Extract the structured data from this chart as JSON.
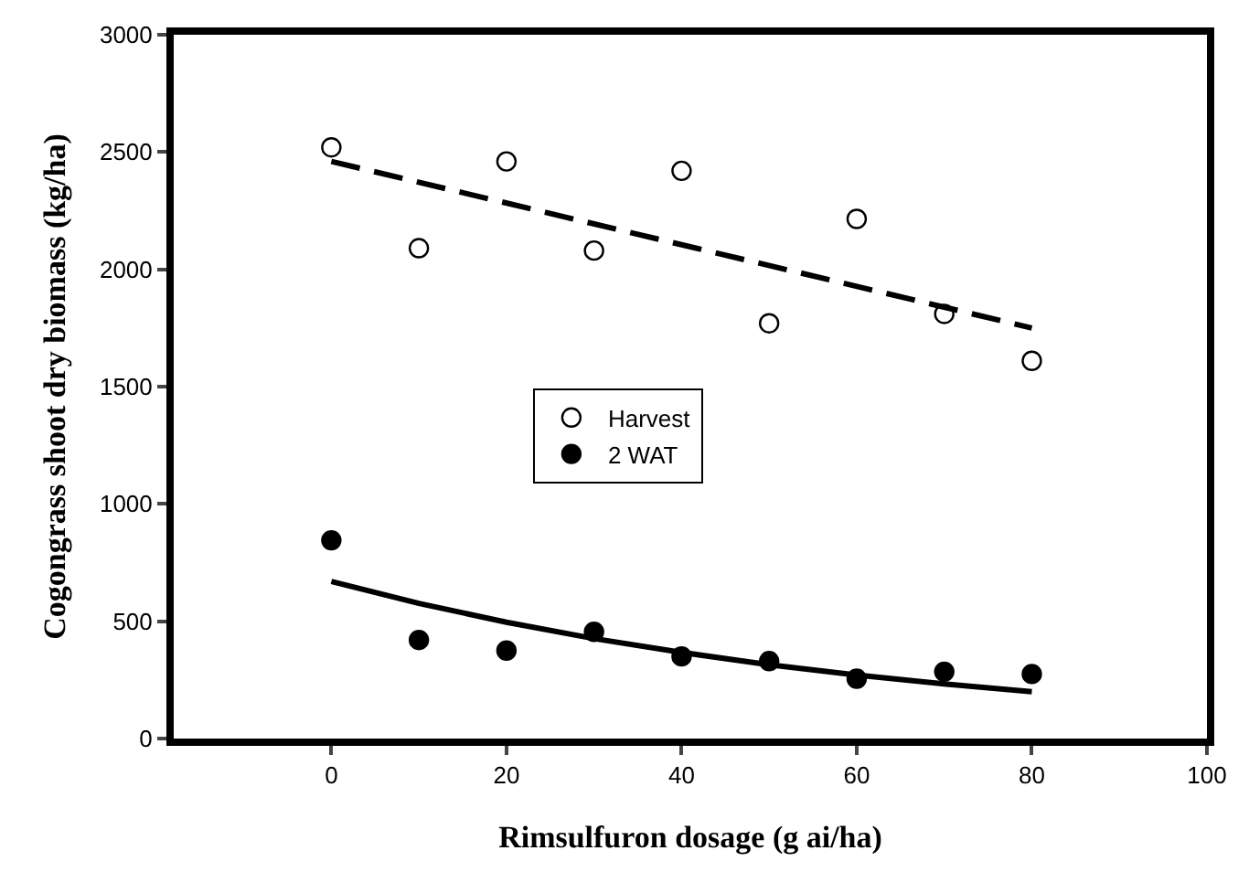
{
  "chart_data": {
    "type": "scatter",
    "xlabel": "Rimsulfuron dosage (g ai/ha)",
    "ylabel": "Cogongrass shoot dry biomass (kg/ha)",
    "x": [
      0,
      10,
      20,
      30,
      40,
      50,
      60,
      70,
      80
    ],
    "series": [
      {
        "name": "Harvest",
        "marker": "circle",
        "color": "#ffffff",
        "values": [
          2520,
          2090,
          2460,
          2080,
          2420,
          1770,
          2215,
          1810,
          1610
        ]
      },
      {
        "name": "2 WAT",
        "marker": "circle",
        "color": "#000000",
        "values": [
          845,
          420,
          375,
          455,
          350,
          330,
          255,
          285,
          275
        ]
      },
      {
        "type": "line",
        "line_style": "dashed",
        "color": "#000000",
        "x": [
          0,
          80
        ],
        "values": [
          2460,
          1750
        ]
      },
      {
        "type": "line",
        "line_style": "solid",
        "color": "#000000",
        "x": [
          0,
          10,
          20,
          30,
          40,
          50,
          60,
          70,
          80
        ],
        "values": [
          670,
          576,
          496,
          426,
          367,
          315,
          271,
          233,
          200
        ]
      }
    ],
    "xlim": [
      -18,
      100
    ],
    "xticks": [
      0,
      20,
      40,
      60,
      80,
      100
    ],
    "ylim": [
      0,
      3000
    ],
    "yticks": [
      0,
      500,
      1000,
      1500,
      2000,
      2500,
      3000
    ],
    "legend": "center"
  }
}
